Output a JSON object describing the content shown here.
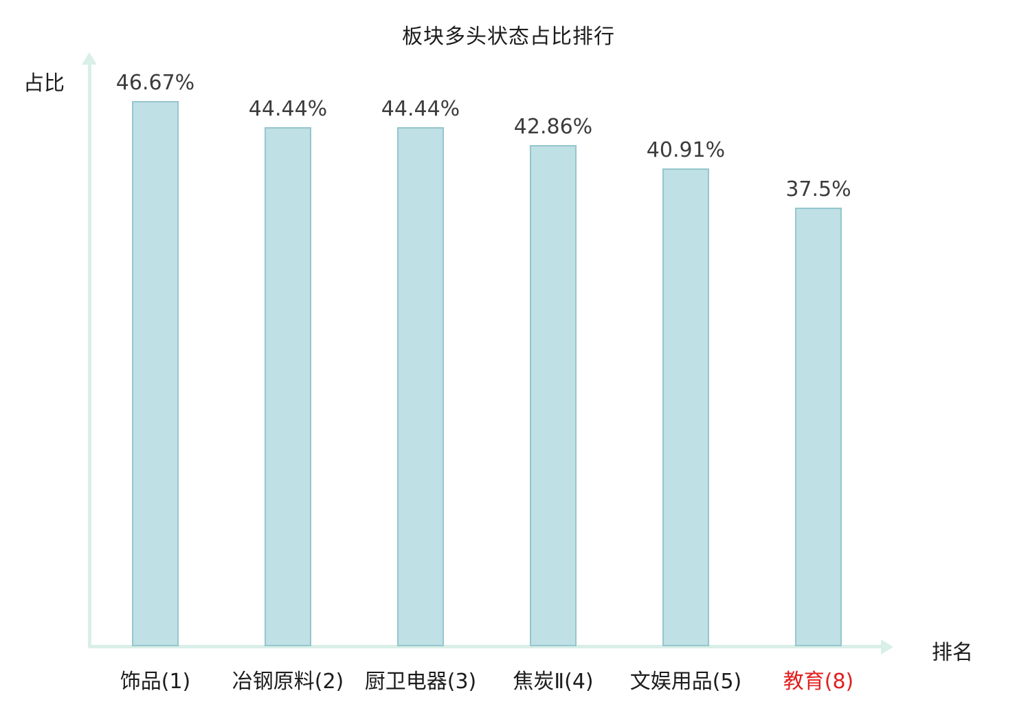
{
  "title": "板块多头状态占比排行",
  "axes": {
    "y_label": "占比",
    "x_label": "排名"
  },
  "colors": {
    "bar_fill": "#bfe0e5",
    "bar_border": "#94c6cd",
    "axis": "#d9efe7",
    "text": "#1c1c1c",
    "value_text": "#3c3c3c",
    "highlight": "#e02020"
  },
  "chart_data": {
    "type": "bar",
    "title": "板块多头状态占比排行",
    "xlabel": "排名",
    "ylabel": "占比",
    "categories": [
      "饰品(1)",
      "冶钢原料(2)",
      "厨卫电器(3)",
      "焦炭Ⅱ(4)",
      "文娱用品(5)",
      "教育(8)"
    ],
    "values": [
      46.67,
      44.44,
      44.44,
      42.86,
      40.91,
      37.5
    ],
    "value_labels": [
      "46.67%",
      "44.44%",
      "44.44%",
      "42.86%",
      "40.91%",
      "37.5%"
    ],
    "highlight_index": 5,
    "ylim": [
      0,
      50
    ],
    "grid": false,
    "legend": "none"
  }
}
